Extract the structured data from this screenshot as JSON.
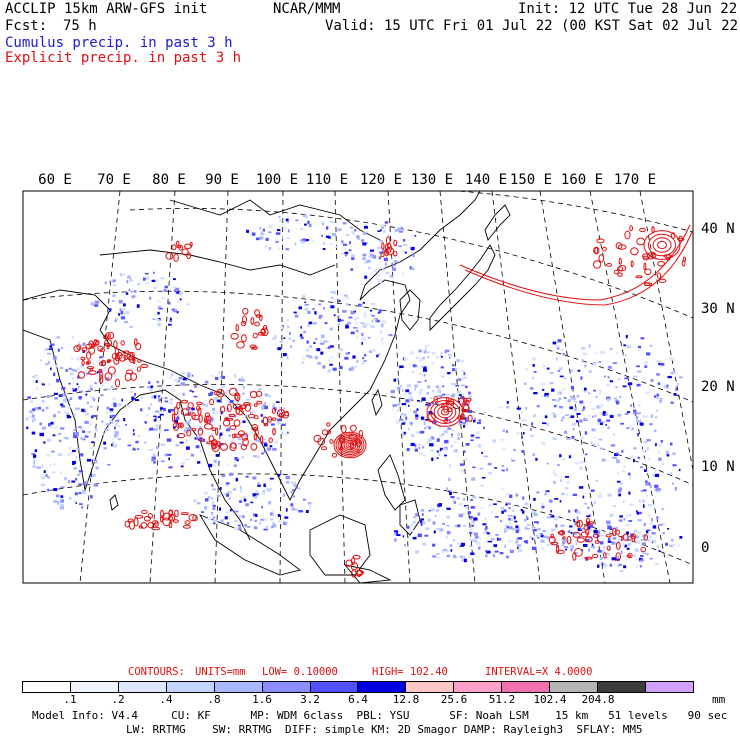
{
  "header": {
    "model_title": "ACCLIP 15km ARW-GFS init",
    "center": "NCAR/MMM",
    "init": "Init: 12 UTC Tue 28 Jun 22",
    "fcst_label": "Fcst:",
    "fcst_value": "75 h",
    "valid": "Valid: 15 UTC Fri 01 Jul 22 (00 KST Sat 02 Jul 22)",
    "legend_cumulus": "Cumulus precip. in past 3 h",
    "legend_explicit": "Explicit precip. in past 3 h"
  },
  "colors": {
    "cumulus": "#1a1ad0",
    "explicit": "#e01010",
    "coast": "#000000"
  },
  "map": {
    "longitude_labels": [
      "60 E",
      "70 E",
      "80 E",
      "90 E",
      "100 E",
      "110 E",
      "120 E",
      "130 E",
      "140 E",
      "150 E",
      "160 E",
      "170 E"
    ],
    "latitude_labels": [
      "40 N",
      "30 N",
      "20 N",
      "10 N",
      "0"
    ]
  },
  "contours": {
    "label": "CONTOURS:",
    "units": "UNITS=mm",
    "low": "LOW= 0.10000",
    "high": "HIGH= 102.40",
    "interval": "INTERVAL=X 4.0000"
  },
  "colorbar": {
    "colors": [
      "#ffffff",
      "#f0f4ff",
      "#dce6ff",
      "#c2d4ff",
      "#a8b8ff",
      "#8c8cff",
      "#5050ff",
      "#0000e0",
      "#ffc8c8",
      "#ffa0c8",
      "#f070b0",
      "#b4b4b4",
      "#3c3c3c",
      "#d2a0ff"
    ],
    "labels": [
      ".1",
      ".2",
      ".4",
      ".8",
      "1.6",
      "3.2",
      "6.4",
      "12.8",
      "25.6",
      "51.2",
      "102.4",
      "204.8"
    ],
    "unit": "mm"
  },
  "footer": {
    "line1": "Model Info: V4.4     CU: KF      MP: WDM 6class  PBL: YSU      SF: Noah LSM    15 km   51 levels   90 sec",
    "line2": "LW: RRTMG    SW: RRTMG  DIFF: simple KM: 2D Smagor DAMP: Rayleigh3  SFLAY: MM5"
  }
}
